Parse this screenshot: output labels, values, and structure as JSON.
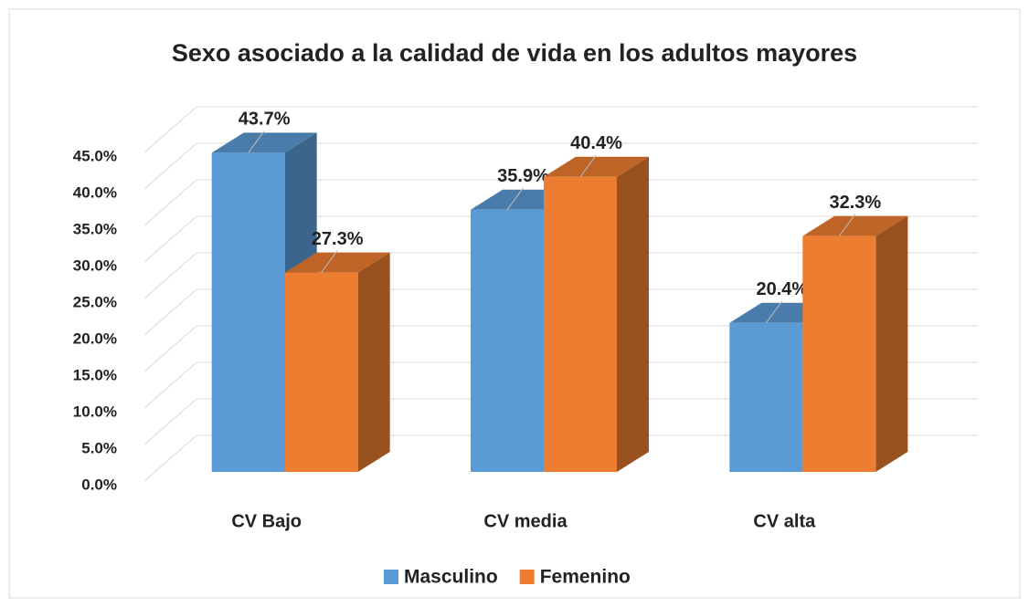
{
  "chart_data": {
    "type": "bar3d",
    "title": "Sexo asociado a la calidad de vida en los adultos mayores",
    "categories": [
      "CV Bajo",
      "CV media",
      "CV alta"
    ],
    "series": [
      {
        "name": "Masculino",
        "color": "#5b9bd5",
        "values": [
          43.7,
          35.9,
          20.4
        ],
        "value_labels": [
          "43.7%",
          "35.9%",
          "20.4%"
        ]
      },
      {
        "name": "Femenino",
        "color": "#ed7d31",
        "values": [
          27.3,
          40.4,
          32.3
        ],
        "value_labels": [
          "27.3%",
          "40.4%",
          "32.3%"
        ]
      }
    ],
    "ylim": [
      0,
      45
    ],
    "yticks": [
      {
        "value": 0,
        "label": "0.0%"
      },
      {
        "value": 5,
        "label": "5.0%"
      },
      {
        "value": 10,
        "label": "10.0%"
      },
      {
        "value": 15,
        "label": "15.0%"
      },
      {
        "value": 20,
        "label": "20.0%"
      },
      {
        "value": 25,
        "label": "25.0%"
      },
      {
        "value": 30,
        "label": "30.0%"
      },
      {
        "value": 35,
        "label": "35.0%"
      },
      {
        "value": 40,
        "label": "40.0%"
      },
      {
        "value": 45,
        "label": "45.0%"
      }
    ],
    "grid": true,
    "legend": "bottom"
  }
}
